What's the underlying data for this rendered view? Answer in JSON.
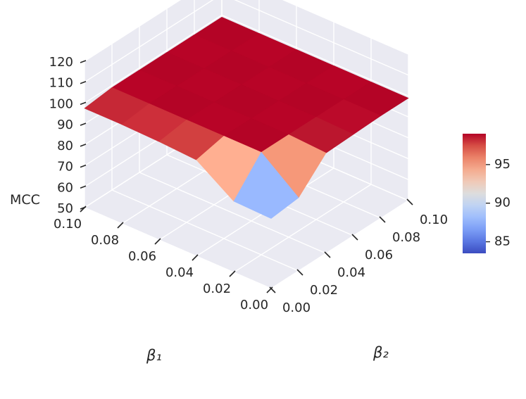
{
  "chart_data": {
    "type": "surface",
    "title": "",
    "xlabel": "β₁",
    "ylabel": "β₂",
    "zlabel": "MCC",
    "x": [
      0.0,
      0.02,
      0.04,
      0.06,
      0.08,
      0.1
    ],
    "y": [
      0.0,
      0.02,
      0.04,
      0.06,
      0.08,
      0.1
    ],
    "x_tick_labels": [
      "0.00",
      "0.02",
      "0.04",
      "0.06",
      "0.08",
      "0.10"
    ],
    "y_tick_labels": [
      "0.00",
      "0.02",
      "0.04",
      "0.06",
      "0.08",
      "0.10"
    ],
    "z_tick_labels": [
      "50",
      "60",
      "70",
      "80",
      "90",
      "100",
      "110",
      "120"
    ],
    "zlim": [
      50,
      120
    ],
    "z": [
      [
        83.5,
        85.0,
        98.0,
        98.5,
        99.0,
        99.0
      ],
      [
        84.0,
        99.0,
        99.0,
        99.0,
        99.0,
        99.0
      ],
      [
        96.0,
        99.0,
        99.0,
        99.0,
        99.0,
        99.0
      ],
      [
        97.0,
        99.0,
        99.0,
        99.0,
        99.0,
        99.0
      ],
      [
        97.5,
        99.0,
        99.0,
        99.0,
        99.0,
        99.0
      ],
      [
        97.5,
        99.0,
        99.0,
        99.0,
        99.0,
        99.0
      ]
    ],
    "colorbar": {
      "colormap": "coolwarm",
      "ticks": [
        "85",
        "90",
        "95"
      ],
      "min": 83.5,
      "max": 99.0
    },
    "colors": {
      "pane": "#eaeaf2",
      "grid": "#ffffff",
      "text": "#262626"
    }
  }
}
